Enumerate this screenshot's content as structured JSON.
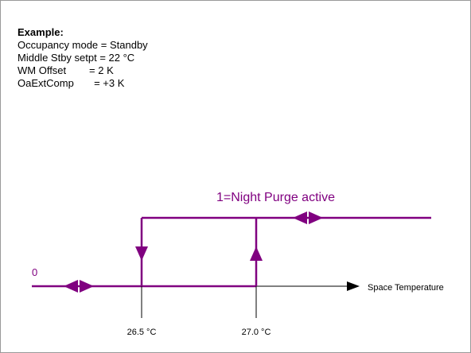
{
  "example": {
    "heading": "Example:",
    "lines": [
      "Occupancy mode = Standby",
      "Middle Stby setpt = 22 °C",
      "WM Offset        = 2 K",
      "OaExtComp       = +3 K"
    ]
  },
  "diagram": {
    "state_on": "1=Night Purge active",
    "state_off": "0",
    "axis_label": "Space Temperature",
    "thresholds": [
      "26.5 °C",
      "27.0 °C"
    ]
  }
}
